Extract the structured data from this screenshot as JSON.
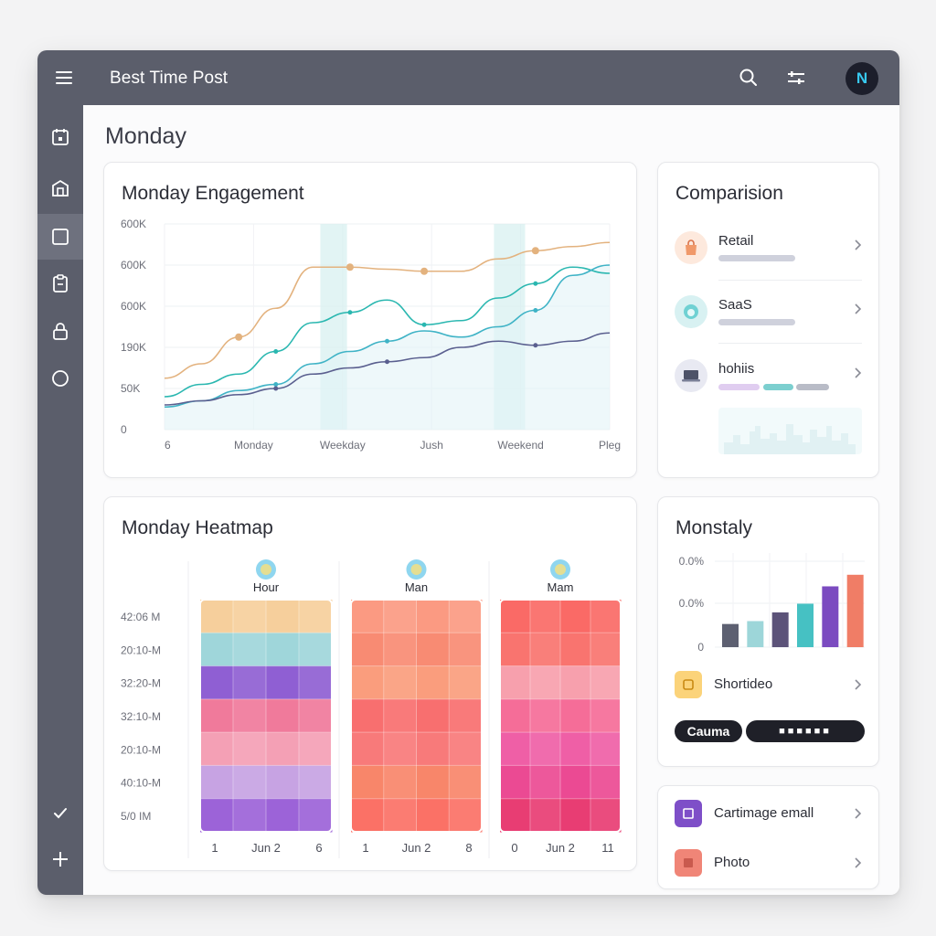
{
  "app": {
    "title": "Best Time Post",
    "avatar_initial": "N"
  },
  "topbar": {
    "icons": [
      "menu-icon",
      "search-icon",
      "sliders-icon"
    ]
  },
  "sidebar": {
    "items": [
      {
        "icon": "calendar-icon"
      },
      {
        "icon": "building-icon"
      },
      {
        "icon": "square-icon",
        "active": true
      },
      {
        "icon": "clipboard-icon"
      },
      {
        "icon": "lock-icon"
      },
      {
        "icon": "circle-icon"
      }
    ],
    "bottom_items": [
      {
        "icon": "check-icon"
      },
      {
        "icon": "plus-icon"
      }
    ]
  },
  "page": {
    "title": "Monday"
  },
  "engagement": {
    "title": "Monday Engagement",
    "chart_data": {
      "type": "line",
      "y_ticks": [
        "600K",
        "600K",
        "600K",
        "190K",
        "50K",
        "0"
      ],
      "x_ticks": [
        "6",
        "Monday",
        "Weekday",
        "Jush",
        "Weekend",
        "Pleg"
      ],
      "series": [
        {
          "color": "#e3b27e",
          "values": [
            0.25,
            0.32,
            0.45,
            0.59,
            0.79,
            0.79,
            0.78,
            0.77,
            0.77,
            0.83,
            0.87,
            0.89,
            0.91
          ]
        },
        {
          "color": "#2ab7b0",
          "values": [
            0.16,
            0.22,
            0.27,
            0.38,
            0.52,
            0.57,
            0.63,
            0.51,
            0.53,
            0.64,
            0.71,
            0.79,
            0.76
          ]
        },
        {
          "color": "#3fb3c6",
          "values": [
            0.11,
            0.14,
            0.19,
            0.22,
            0.32,
            0.38,
            0.43,
            0.48,
            0.45,
            0.5,
            0.58,
            0.75,
            0.8
          ]
        },
        {
          "color": "#5a5f8f",
          "values": [
            0.12,
            0.14,
            0.17,
            0.2,
            0.27,
            0.3,
            0.33,
            0.35,
            0.4,
            0.43,
            0.41,
            0.43,
            0.47
          ]
        }
      ],
      "highlights": [
        {
          "from": 0.35,
          "to": 0.41
        },
        {
          "from": 0.74,
          "to": 0.81
        }
      ]
    }
  },
  "comparison": {
    "title": "Comparision",
    "items": [
      {
        "label": "Retail",
        "icon": "shopping-bag-icon",
        "icon_bg": "#fde9dd"
      },
      {
        "label": "SaaS",
        "icon": "cloud-icon",
        "icon_bg": "#d8f1f2"
      },
      {
        "label": "hohiis",
        "icon": "laptop-icon",
        "icon_bg": "#e8e9f2"
      }
    ]
  },
  "heatmap": {
    "title": "Monday Heatmap",
    "y_labels": [
      "42:06 M",
      "20:10-M",
      "32:20-M",
      "32:10-M",
      "20:10-M",
      "40:10-M",
      "5/0 IM"
    ],
    "columns": [
      {
        "header": "Hour",
        "x_labels": [
          "1",
          "Jun 2",
          "6"
        ]
      },
      {
        "header": "Man",
        "x_labels": [
          "1",
          "Jun 2",
          "8"
        ]
      },
      {
        "header": "Mam",
        "x_labels": [
          "0",
          "Jun 2",
          "11"
        ]
      }
    ]
  },
  "monthly": {
    "title": "Monstaly",
    "chart_data": {
      "type": "bar",
      "y_ticks": [
        "0.0%",
        "0.0%",
        "0"
      ],
      "values": [
        0.24,
        0.27,
        0.36,
        0.45,
        0.63,
        0.75
      ],
      "colors": [
        "#5d6071",
        "#9dd6d9",
        "#5c5379",
        "#46c1c3",
        "#7b4bc0",
        "#f07d66"
      ]
    },
    "item": {
      "label": "Shortideo",
      "icon": "star-icon"
    },
    "pills": {
      "left": "Cauma",
      "right": "■■■■■■"
    }
  },
  "more": {
    "items": [
      {
        "label": "Cartimage emall",
        "icon": "image-frame-icon",
        "icon_bg": "#7e4fc8"
      },
      {
        "label": "Photo",
        "icon": "photo-icon",
        "icon_bg": "#f08577"
      }
    ]
  }
}
